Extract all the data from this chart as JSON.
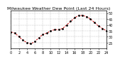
{
  "title": "Milwaukee Weather Dew Point (Last 24 Hours)",
  "x_values": [
    0,
    1,
    2,
    3,
    4,
    5,
    6,
    7,
    8,
    9,
    10,
    11,
    12,
    13,
    14,
    15,
    16,
    17,
    18,
    19,
    20,
    21,
    22,
    23,
    24
  ],
  "y_values": [
    34,
    33,
    30,
    27,
    25,
    24,
    26,
    29,
    32,
    33,
    35,
    36,
    36,
    37,
    40,
    43,
    46,
    48,
    48,
    47,
    45,
    42,
    39,
    37,
    35
  ],
  "line_color": "#cc0000",
  "marker_color": "#000000",
  "background_color": "#ffffff",
  "grid_color": "#999999",
  "ylim": [
    20,
    52
  ],
  "yticks": [
    25,
    30,
    35,
    40,
    45,
    50
  ],
  "xlim": [
    0,
    24
  ],
  "xtick_step": 2,
  "xlabel_color": "#000000",
  "title_color": "#000000",
  "title_fontsize": 4.5,
  "tick_fontsize": 3.5,
  "ylabel_fontsize": 3.5
}
